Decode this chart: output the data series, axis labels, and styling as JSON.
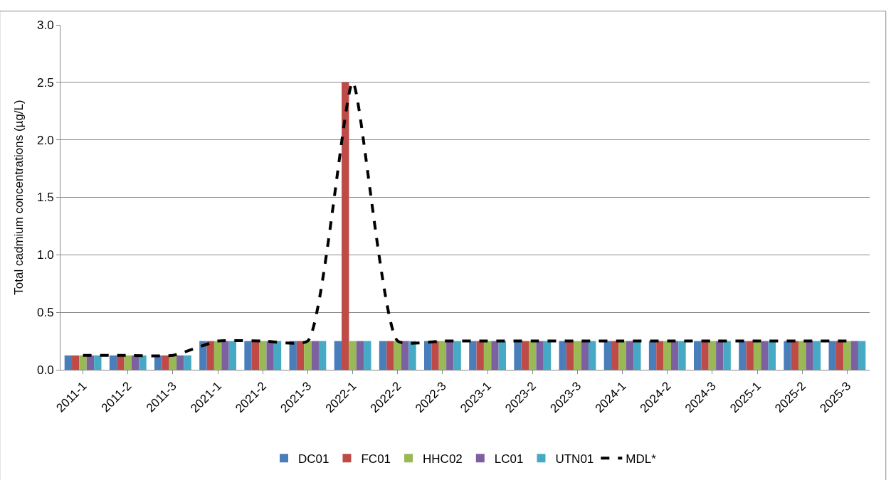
{
  "chart_data": {
    "type": "bar",
    "ylabel": "Total cadmium concentrations (µg/L)",
    "categories": [
      "2011-1",
      "2011-2",
      "2011-3",
      "2021-1",
      "2021-2",
      "2021-3",
      "2022-1",
      "2022-2",
      "2022-3",
      "2023-1",
      "2023-2",
      "2023-3",
      "2024-1",
      "2024-2",
      "2024-3",
      "2025-1",
      "2025-2",
      "2025-3"
    ],
    "series": [
      {
        "name": "DC01",
        "color": "#4a7ebb",
        "values": [
          0.125,
          0.125,
          0.125,
          0.25,
          0.25,
          0.25,
          0.25,
          0.25,
          0.25,
          0.25,
          0.25,
          0.25,
          0.25,
          0.25,
          0.25,
          0.25,
          0.25,
          0.25
        ]
      },
      {
        "name": "FC01",
        "color": "#be4b48",
        "values": [
          0.125,
          0.125,
          0.125,
          0.25,
          0.25,
          0.25,
          2.5,
          0.25,
          0.25,
          0.25,
          0.25,
          0.25,
          0.25,
          0.25,
          0.25,
          0.25,
          0.25,
          0.25
        ]
      },
      {
        "name": "HHC02",
        "color": "#98b954",
        "values": [
          0.125,
          0.125,
          0.125,
          0.25,
          0.25,
          0.25,
          0.25,
          0.25,
          0.25,
          0.25,
          0.25,
          0.25,
          0.25,
          0.25,
          0.25,
          0.25,
          0.25,
          0.25
        ]
      },
      {
        "name": "LC01",
        "color": "#7d60a0",
        "values": [
          0.125,
          0.125,
          0.125,
          0.25,
          0.25,
          0.25,
          0.25,
          0.25,
          0.25,
          0.25,
          0.25,
          0.25,
          0.25,
          0.25,
          0.25,
          0.25,
          0.25,
          0.25
        ]
      },
      {
        "name": "UTN01",
        "color": "#46aac5",
        "values": [
          0.125,
          0.125,
          0.125,
          0.25,
          0.25,
          0.25,
          0.25,
          0.25,
          0.25,
          0.25,
          0.25,
          0.25,
          0.25,
          0.25,
          0.25,
          0.25,
          0.25,
          0.25
        ]
      },
      {
        "name": "MDL*",
        "type": "line",
        "color": "#000000",
        "line_style": "dashed",
        "marker": "none",
        "values": [
          0.125,
          0.125,
          0.125,
          0.25,
          0.25,
          0.25,
          2.5,
          0.25,
          0.25,
          0.25,
          0.25,
          0.25,
          0.25,
          0.25,
          0.25,
          0.25,
          0.25,
          0.25
        ]
      }
    ],
    "ylim": [
      0,
      3
    ],
    "yticks": [
      {
        "value": 0,
        "label": "0.0"
      },
      {
        "value": 0.5,
        "label": "0.5"
      },
      {
        "value": 1,
        "label": "1.0"
      },
      {
        "value": 1.5,
        "label": "1.5"
      },
      {
        "value": 2,
        "label": "2.0"
      },
      {
        "value": 2.5,
        "label": "2.5"
      },
      {
        "value": 3,
        "label": "3.0"
      }
    ],
    "grid": "y",
    "legend": "bottom"
  }
}
